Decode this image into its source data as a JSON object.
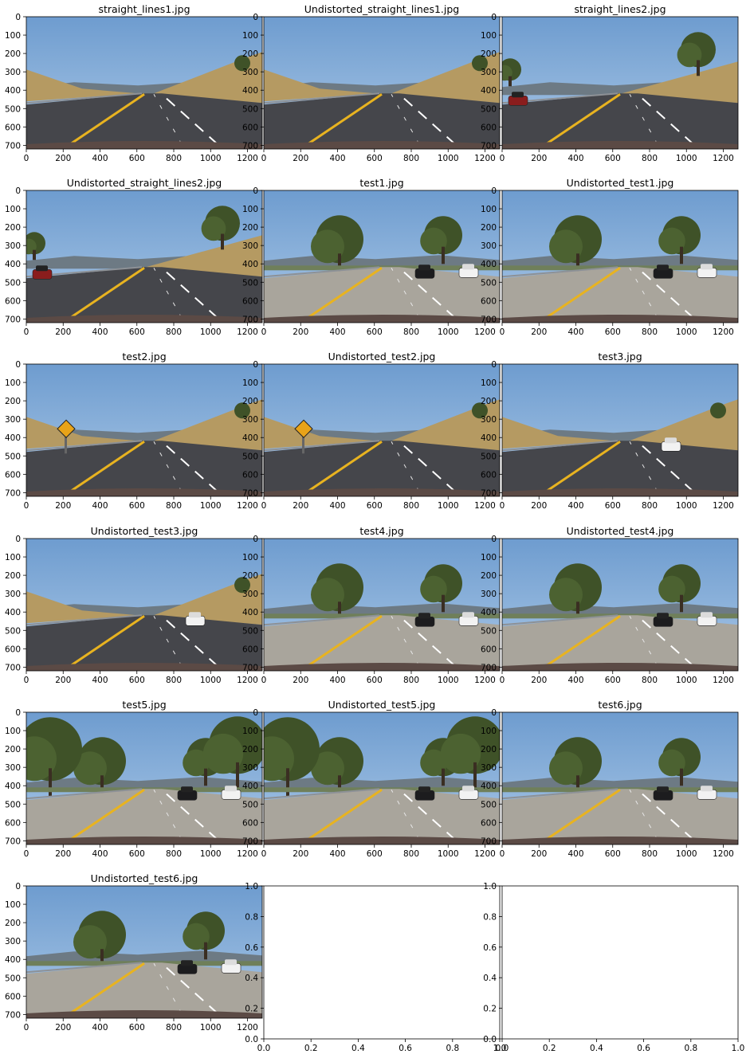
{
  "chart_data": {
    "type": "image-grid",
    "grid": {
      "rows": 6,
      "cols": 3
    },
    "image_axes": {
      "xlim": [
        0,
        1280
      ],
      "ylim": [
        720,
        0
      ],
      "xticks": [
        0,
        200,
        400,
        600,
        800,
        1000,
        1200
      ],
      "yticks": [
        0,
        100,
        200,
        300,
        400,
        500,
        600,
        700
      ]
    },
    "empty_axes": {
      "xlim": [
        0,
        1
      ],
      "ylim": [
        0,
        1
      ],
      "xtick_labels": [
        "0.0",
        "0.2",
        "0.4",
        "0.6",
        "0.8",
        "1.0"
      ],
      "ytick_labels": [
        "0.0",
        "0.2",
        "0.4",
        "0.6",
        "0.8",
        "1.0"
      ]
    },
    "panels": [
      {
        "title": "straight_lines1.jpg",
        "scene": "hills",
        "sign": false,
        "cars": []
      },
      {
        "title": "Undistorted_straight_lines1.jpg",
        "scene": "hills",
        "sign": false,
        "cars": []
      },
      {
        "title": "straight_lines2.jpg",
        "scene": "open",
        "sign": false,
        "cars": [
          "red"
        ]
      },
      {
        "title": "Undistorted_straight_lines2.jpg",
        "scene": "open",
        "sign": false,
        "cars": [
          "red"
        ]
      },
      {
        "title": "test1.jpg",
        "scene": "trees",
        "sign": false,
        "cars": [
          "black",
          "white"
        ]
      },
      {
        "title": "Undistorted_test1.jpg",
        "scene": "trees",
        "sign": false,
        "cars": [
          "black",
          "white"
        ]
      },
      {
        "title": "test2.jpg",
        "scene": "hills",
        "sign": true,
        "cars": []
      },
      {
        "title": "Undistorted_test2.jpg",
        "scene": "hills",
        "sign": true,
        "cars": []
      },
      {
        "title": "test3.jpg",
        "scene": "slope",
        "sign": false,
        "cars": [
          "white"
        ]
      },
      {
        "title": "Undistorted_test3.jpg",
        "scene": "slope",
        "sign": false,
        "cars": [
          "white"
        ]
      },
      {
        "title": "test4.jpg",
        "scene": "trees",
        "sign": false,
        "cars": [
          "black",
          "white"
        ]
      },
      {
        "title": "Undistorted_test4.jpg",
        "scene": "trees",
        "sign": false,
        "cars": [
          "black",
          "white"
        ]
      },
      {
        "title": "test5.jpg",
        "scene": "shade",
        "sign": false,
        "cars": [
          "black",
          "white"
        ]
      },
      {
        "title": "Undistorted_test5.jpg",
        "scene": "shade",
        "sign": false,
        "cars": [
          "black",
          "white"
        ]
      },
      {
        "title": "test6.jpg",
        "scene": "trees",
        "sign": false,
        "cars": [
          "black",
          "white"
        ]
      },
      {
        "title": "Undistorted_test6.jpg",
        "scene": "trees",
        "sign": false,
        "cars": [
          "black",
          "white"
        ]
      },
      {
        "title": "",
        "scene": "empty",
        "sign": false,
        "cars": []
      },
      {
        "title": "",
        "scene": "empty",
        "sign": false,
        "cars": []
      }
    ]
  },
  "colors": {
    "sky": "#6e9ccf",
    "sky_low": "#a9c7e6",
    "road": "#45464b",
    "road_light": "#a9a59c",
    "yellow_line": "#e8b320",
    "grass": "#b59a62",
    "tree": "#3f5228",
    "hood": "#5b4a45"
  }
}
